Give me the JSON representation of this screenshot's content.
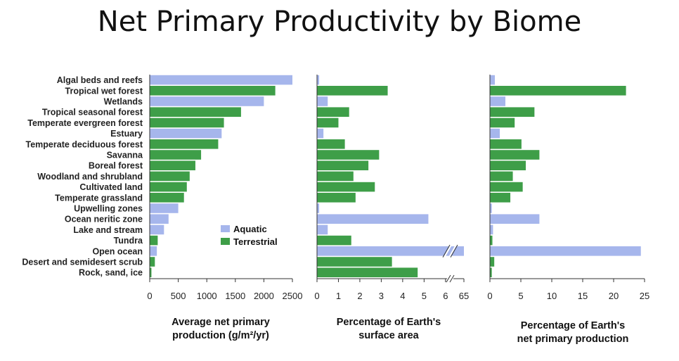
{
  "title": "Net Primary Productivity by Biome",
  "colors": {
    "aquatic": "#a6b6ec",
    "terrestrial": "#3e9e48",
    "axis": "#333333"
  },
  "legend": {
    "aquatic": "Aquatic",
    "terrestrial": "Terrestrial"
  },
  "chart_data": [
    {
      "type": "bar",
      "orientation": "horizontal",
      "categories": [
        "Algal beds and reefs",
        "Tropical wet forest",
        "Wetlands",
        "Tropical seasonal forest",
        "Temperate evergreen forest",
        "Estuary",
        "Temperate deciduous forest",
        "Savanna",
        "Boreal forest",
        "Woodland and shrubland",
        "Cultivated land",
        "Temperate grassland",
        "Upwelling zones",
        "Ocean neritic zone",
        "Lake and stream",
        "Tundra",
        "Open ocean",
        "Desert and semidesert scrub",
        "Rock, sand, ice"
      ],
      "kind": [
        "aquatic",
        "terrestrial",
        "aquatic",
        "terrestrial",
        "terrestrial",
        "aquatic",
        "terrestrial",
        "terrestrial",
        "terrestrial",
        "terrestrial",
        "terrestrial",
        "terrestrial",
        "aquatic",
        "aquatic",
        "aquatic",
        "terrestrial",
        "aquatic",
        "terrestrial",
        "terrestrial"
      ],
      "values": [
        2500,
        2200,
        2000,
        1600,
        1300,
        1260,
        1200,
        900,
        800,
        700,
        650,
        600,
        500,
        330,
        250,
        140,
        125,
        90,
        30
      ],
      "xlabel_lines": [
        "Average net primary",
        "production (g/m²/yr)"
      ],
      "xticks": [
        "0",
        "500",
        "1000",
        "1500",
        "2000",
        "2500"
      ],
      "xlim": [
        0,
        2500
      ]
    },
    {
      "type": "bar",
      "orientation": "horizontal",
      "values": [
        0.1,
        3.3,
        0.5,
        1.5,
        1.0,
        0.3,
        1.3,
        2.9,
        2.4,
        1.7,
        2.7,
        1.8,
        0.1,
        5.2,
        0.5,
        1.6,
        65,
        3.5,
        4.7
      ],
      "xlabel_lines": [
        "Percentage of Earth's",
        "surface area"
      ],
      "xticks": [
        "0",
        "1",
        "2",
        "3",
        "4",
        "5",
        "6",
        "65"
      ],
      "xlim": [
        0,
        6.4
      ],
      "axis_break": true
    },
    {
      "type": "bar",
      "orientation": "horizontal",
      "values": [
        0.8,
        22,
        2.5,
        7.2,
        4.0,
        1.6,
        5.1,
        8.0,
        5.8,
        3.7,
        5.3,
        3.3,
        0.3,
        8.0,
        0.5,
        0.4,
        24.4,
        0.7,
        0.3
      ],
      "xlabel_lines": [
        "Percentage of Earth's",
        "net primary production"
      ],
      "xticks": [
        "0",
        "5",
        "10",
        "15",
        "20",
        "25"
      ],
      "xlim": [
        0,
        25
      ]
    }
  ]
}
